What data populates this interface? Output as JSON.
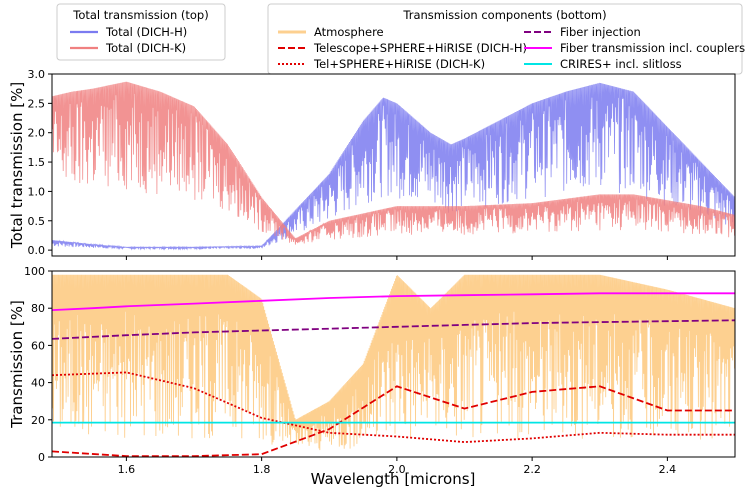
{
  "legend_top": {
    "title": "Total transmission (top)",
    "entries": [
      {
        "label": "Total (DICH-H)",
        "color": "#7b7bf0",
        "style": "solid"
      },
      {
        "label": "Total (DICH-K)",
        "color": "#f08080",
        "style": "solid"
      }
    ]
  },
  "legend_bottom": {
    "title": "Transmission components (bottom)",
    "entries": [
      {
        "label": "Atmosphere",
        "color": "#fdd090",
        "style": "solid"
      },
      {
        "label": "Telescope+SPHERE+HiRISE (DICH-H)",
        "color": "#e00000",
        "style": "dashed"
      },
      {
        "label": "Tel+SPHERE+HiRISE (DICH-K)",
        "color": "#e00000",
        "style": "dotted"
      },
      {
        "label": "Fiber injection",
        "color": "#800080",
        "style": "dashed"
      },
      {
        "label": "Fiber transmission incl. couplers",
        "color": "#ff00ff",
        "style": "solid"
      },
      {
        "label": "CRIRES+ incl. slitloss",
        "color": "#00e5e5",
        "style": "solid"
      }
    ]
  },
  "chart_data": [
    {
      "type": "line",
      "ylabel": "Total transmission [%]",
      "xlim": [
        1.49,
        2.5
      ],
      "ylim": [
        -0.1,
        3.0
      ],
      "yticks": [
        "0.0",
        "0.5",
        "1.0",
        "1.5",
        "2.0",
        "2.5",
        "3.0"
      ],
      "series": [
        {
          "name": "Total (DICH-H)",
          "color": "#7b7bf0",
          "x": [
            1.49,
            1.55,
            1.6,
            1.7,
            1.8,
            1.9,
            1.95,
            1.98,
            2.0,
            2.02,
            2.05,
            2.08,
            2.1,
            2.15,
            2.2,
            2.25,
            2.3,
            2.35,
            2.4,
            2.45,
            2.5
          ],
          "y": [
            0.17,
            0.1,
            0.05,
            0.05,
            0.07,
            1.3,
            2.2,
            2.6,
            2.5,
            2.3,
            2.0,
            1.8,
            1.9,
            2.2,
            2.5,
            2.7,
            2.85,
            2.7,
            2.1,
            1.5,
            0.9
          ]
        },
        {
          "name": "Total (DICH-K)",
          "color": "#f08080",
          "x": [
            1.49,
            1.52,
            1.55,
            1.6,
            1.65,
            1.7,
            1.75,
            1.8,
            1.85,
            1.9,
            2.0,
            2.05,
            2.1,
            2.2,
            2.3,
            2.35,
            2.4,
            2.45,
            2.5
          ],
          "y": [
            2.62,
            2.7,
            2.75,
            2.87,
            2.7,
            2.45,
            1.8,
            0.9,
            0.2,
            0.5,
            0.75,
            0.75,
            0.75,
            0.8,
            0.95,
            0.95,
            0.85,
            0.75,
            0.6
          ]
        }
      ]
    },
    {
      "type": "line",
      "xlabel": "Wavelength [microns]",
      "ylabel": "Transmission [%]",
      "xlim": [
        1.49,
        2.5
      ],
      "ylim": [
        0,
        100
      ],
      "xticks": [
        "1.6",
        "1.8",
        "2.0",
        "2.2",
        "2.4"
      ],
      "yticks": [
        "0",
        "20",
        "40",
        "60",
        "80",
        "100"
      ],
      "series": [
        {
          "name": "Atmosphere",
          "color": "#fdd090",
          "x": [
            1.49,
            1.6,
            1.75,
            1.8,
            1.85,
            1.9,
            1.95,
            2.0,
            2.05,
            2.1,
            2.2,
            2.3,
            2.4,
            2.5
          ],
          "y": [
            98,
            98,
            98,
            85,
            20,
            30,
            50,
            98,
            80,
            98,
            98,
            98,
            90,
            80
          ]
        },
        {
          "name": "Telescope+SPHERE+HiRISE (DICH-H)",
          "color": "#e00000",
          "x": [
            1.49,
            1.6,
            1.7,
            1.8,
            1.9,
            2.0,
            2.1,
            2.2,
            2.3,
            2.4,
            2.5
          ],
          "y": [
            3,
            0.5,
            0.5,
            1.5,
            15,
            38,
            26,
            35,
            38,
            25,
            25
          ]
        },
        {
          "name": "Tel+SPHERE+HiRISE (DICH-K)",
          "color": "#e00000",
          "x": [
            1.49,
            1.6,
            1.7,
            1.8,
            1.9,
            2.0,
            2.1,
            2.2,
            2.3,
            2.4,
            2.5
          ],
          "y": [
            44,
            45.5,
            37,
            21,
            13,
            11,
            8,
            10,
            13,
            12,
            12
          ]
        },
        {
          "name": "Fiber injection",
          "color": "#800080",
          "x": [
            1.49,
            1.6,
            1.7,
            1.8,
            1.9,
            2.0,
            2.1,
            2.2,
            2.3,
            2.4,
            2.5
          ],
          "y": [
            63.5,
            65.5,
            67,
            68,
            69,
            70,
            71,
            72,
            72.5,
            73,
            73.5
          ]
        },
        {
          "name": "Fiber transmission incl. couplers",
          "color": "#ff00ff",
          "x": [
            1.49,
            1.55,
            1.6,
            1.7,
            1.8,
            1.9,
            2.0,
            2.1,
            2.2,
            2.3,
            2.4,
            2.5
          ],
          "y": [
            79,
            80,
            81,
            82.5,
            84,
            85.5,
            86.5,
            87,
            87.5,
            88,
            88,
            88
          ]
        },
        {
          "name": "CRIRES+ incl. slitloss",
          "color": "#00e5e5",
          "x": [
            1.49,
            2.5
          ],
          "y": [
            18.5,
            18.5
          ]
        }
      ]
    }
  ]
}
